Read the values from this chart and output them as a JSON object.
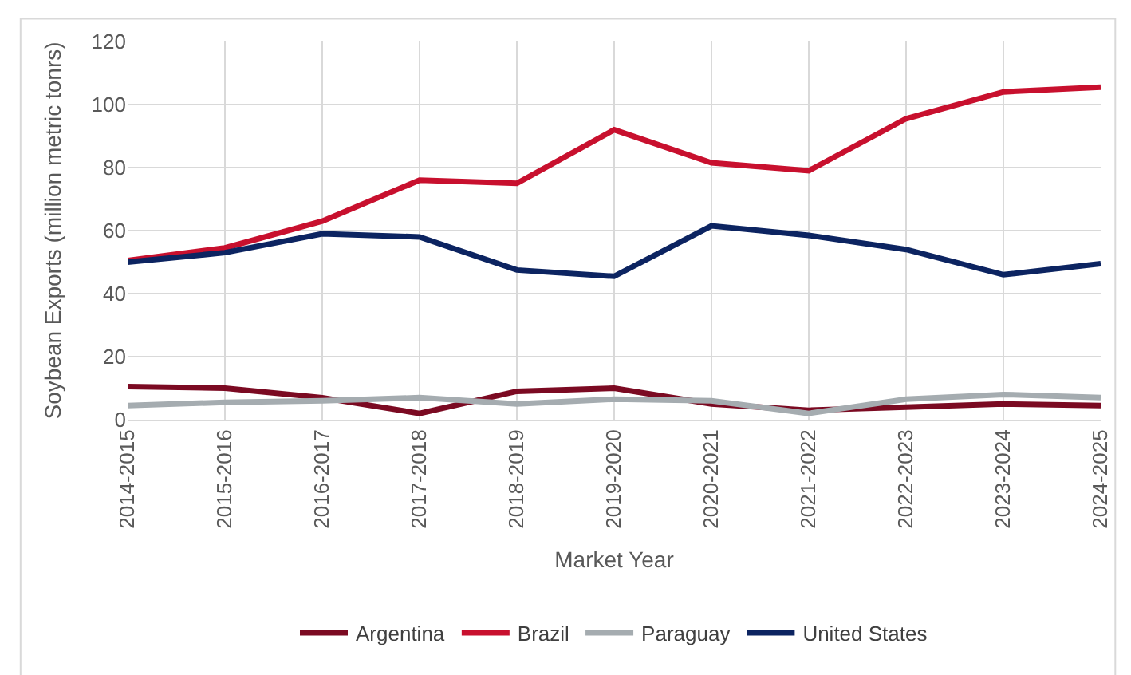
{
  "chart_data": {
    "type": "line",
    "xlabel": "Market Year",
    "ylabel": "Soybean Exports (million metric tonrs)",
    "categories": [
      "2014-2015",
      "2015-2016",
      "2016-2017",
      "2017-2018",
      "2018-2019",
      "2019-2020",
      "2020-2021",
      "2021-2022",
      "2022-2023",
      "2023-2024",
      "2024-2025"
    ],
    "series": [
      {
        "name": "Argentina",
        "color": "#7b0a22",
        "values": [
          10.5,
          10,
          7,
          2,
          9,
          10,
          5,
          3,
          4,
          5,
          4.5
        ]
      },
      {
        "name": "Brazil",
        "color": "#c8102e",
        "values": [
          50.5,
          54.5,
          63,
          76,
          75,
          92,
          81.5,
          79,
          95.5,
          104,
          105.5
        ]
      },
      {
        "name": "Paraguay",
        "color": "#a5acb0",
        "values": [
          4.5,
          5.5,
          6,
          7,
          5,
          6.5,
          6,
          2,
          6.5,
          8,
          7
        ]
      },
      {
        "name": "United States",
        "color": "#0c2461",
        "values": [
          50,
          53,
          59,
          58,
          47.5,
          45.5,
          61.5,
          58.5,
          54,
          46,
          49.5
        ]
      }
    ],
    "ylim": [
      0,
      120
    ],
    "yticks": [
      0,
      20,
      40,
      60,
      80,
      100,
      120
    ],
    "grid": true,
    "legend": "bottom",
    "marker": "none",
    "line_style": "solid"
  }
}
